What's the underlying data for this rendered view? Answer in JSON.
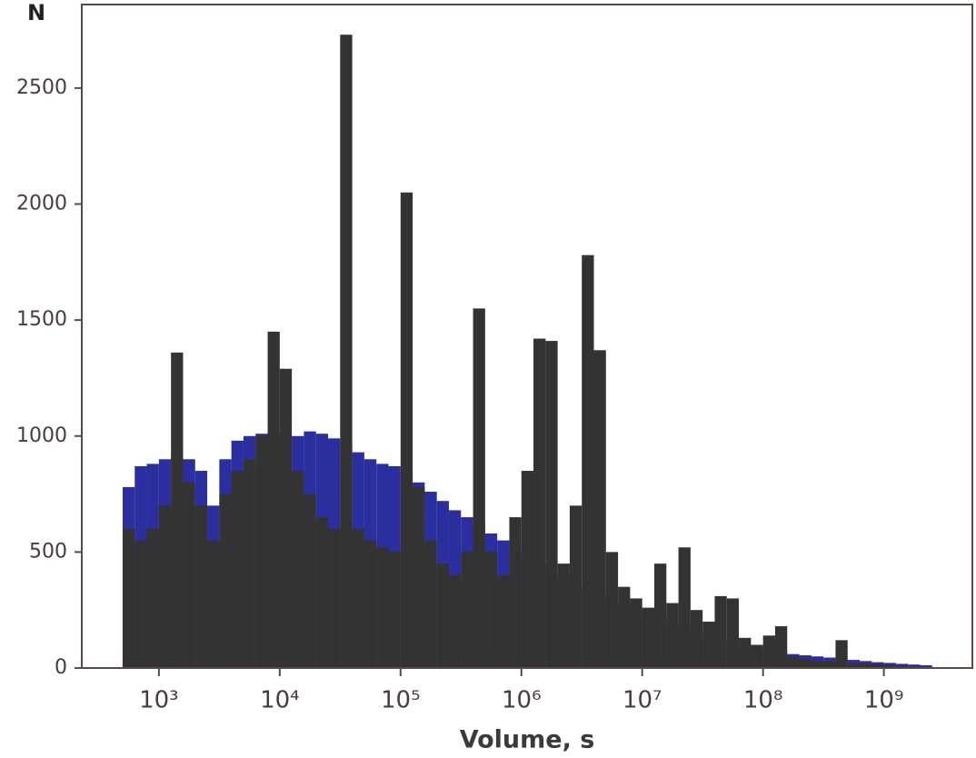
{
  "chart_data": {
    "type": "histogram",
    "x_label": "Volume, s",
    "y_label": "N",
    "xscale": "log",
    "bins": [
      501,
      631,
      794,
      1000,
      1259,
      1585,
      1995,
      2512,
      3162,
      3981,
      5012,
      6310,
      7943,
      10000,
      12589,
      15849,
      19953,
      25119,
      31623,
      39811,
      50119,
      63096,
      79433,
      100000,
      125893,
      158489,
      199526,
      251189,
      316228,
      398107,
      501187,
      630957,
      794328,
      1000000,
      1258925,
      1584893,
      1995262,
      2511886,
      3162278,
      3981072,
      5011872,
      6309573,
      7943282,
      10000000,
      12589254,
      15848932,
      19952623,
      25118864,
      31622777,
      39810717,
      50118723,
      63095734,
      79432823,
      100000000,
      125892541,
      158489319,
      199526231,
      251188643,
      316227766,
      398107171,
      501187234,
      630957344,
      794328235,
      1000000000,
      1258925412,
      1584893192,
      1995262315,
      2511886432
    ],
    "series": [
      {
        "color": "#2b2e9e",
        "values": [
          780,
          870,
          880,
          900,
          920,
          900,
          850,
          700,
          900,
          980,
          1000,
          1010,
          1020,
          1000,
          1000,
          1020,
          1010,
          990,
          960,
          930,
          900,
          880,
          870,
          840,
          800,
          760,
          720,
          680,
          650,
          620,
          580,
          550,
          520,
          490,
          450,
          420,
          390,
          360,
          340,
          320,
          300,
          280,
          260,
          240,
          220,
          200,
          180,
          160,
          140,
          120,
          110,
          100,
          90,
          80,
          70,
          60,
          55,
          50,
          45,
          40,
          35,
          30,
          25,
          22,
          18,
          15,
          12
        ]
      },
      {
        "color": "#333333",
        "values": [
          600,
          550,
          600,
          700,
          1360,
          800,
          700,
          550,
          750,
          850,
          900,
          1000,
          1450,
          1290,
          850,
          750,
          650,
          600,
          2730,
          600,
          550,
          520,
          500,
          2050,
          780,
          550,
          450,
          400,
          500,
          1550,
          500,
          400,
          650,
          850,
          1420,
          1410,
          450,
          700,
          1780,
          1370,
          500,
          350,
          300,
          260,
          450,
          280,
          520,
          250,
          200,
          310,
          300,
          130,
          100,
          140,
          180,
          50,
          40,
          30,
          30,
          120,
          20,
          20,
          15,
          10,
          8,
          5,
          3
        ]
      }
    ],
    "xlim": [
      230,
      5400000000
    ],
    "xticks": [
      {
        "value": 1000,
        "label": "10³"
      },
      {
        "value": 10000,
        "label": "10⁴"
      },
      {
        "value": 100000,
        "label": "10⁵"
      },
      {
        "value": 1000000,
        "label": "10⁶"
      },
      {
        "value": 10000000,
        "label": "10⁷"
      },
      {
        "value": 100000000,
        "label": "10⁸"
      },
      {
        "value": 1000000000,
        "label": "10⁹"
      }
    ],
    "ylim": [
      0,
      2860
    ],
    "yticks": [
      0,
      500,
      1000,
      1500,
      2000,
      2500
    ]
  }
}
